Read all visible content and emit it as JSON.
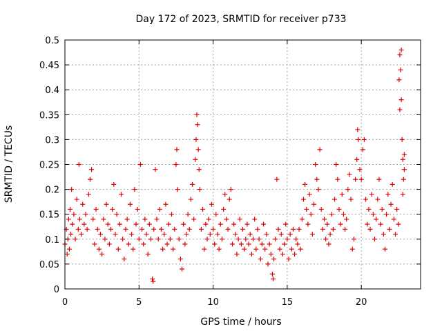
{
  "chart_data": {
    "type": "scatter",
    "title": "Day 172 of 2023, SRMTID for receiver p733",
    "xlabel": "GPS time / hours",
    "ylabel": "SRMTID / TECUs",
    "xlim": [
      0,
      24
    ],
    "ylim": [
      0,
      0.5
    ],
    "xticks": [
      0,
      5,
      10,
      15,
      20
    ],
    "xtick_labels": [
      "0",
      "5",
      "10",
      "15",
      "20"
    ],
    "yticks": [
      0,
      0.05,
      0.1,
      0.15,
      0.2,
      0.25,
      0.3,
      0.35,
      0.4,
      0.45,
      0.5
    ],
    "ytick_labels": [
      "0",
      "0.05",
      "0.1",
      "0.15",
      "0.2",
      "0.25",
      "0.3",
      "0.35",
      "0.4",
      "0.45",
      "0.5"
    ],
    "grid": true,
    "marker": "+",
    "color": "#e00000",
    "series": [
      {
        "name": "SRMTID",
        "points": [
          [
            0.0,
            0.09
          ],
          [
            0.1,
            0.12
          ],
          [
            0.15,
            0.07
          ],
          [
            0.2,
            0.1
          ],
          [
            0.25,
            0.14
          ],
          [
            0.3,
            0.08
          ],
          [
            0.35,
            0.16
          ],
          [
            0.4,
            0.11
          ],
          [
            0.45,
            0.2
          ],
          [
            0.5,
            0.13
          ],
          [
            0.6,
            0.15
          ],
          [
            0.7,
            0.1
          ],
          [
            0.8,
            0.18
          ],
          [
            0.9,
            0.12
          ],
          [
            0.95,
            0.25
          ],
          [
            1.0,
            0.14
          ],
          [
            1.1,
            0.11
          ],
          [
            1.2,
            0.17
          ],
          [
            1.3,
            0.13
          ],
          [
            1.4,
            0.15
          ],
          [
            1.5,
            0.12
          ],
          [
            1.6,
            0.19
          ],
          [
            1.7,
            0.22
          ],
          [
            1.8,
            0.24
          ],
          [
            1.9,
            0.14
          ],
          [
            2.0,
            0.09
          ],
          [
            2.1,
            0.16
          ],
          [
            2.2,
            0.12
          ],
          [
            2.3,
            0.08
          ],
          [
            2.4,
            0.11
          ],
          [
            2.5,
            0.07
          ],
          [
            2.6,
            0.14
          ],
          [
            2.7,
            0.1
          ],
          [
            2.8,
            0.17
          ],
          [
            2.9,
            0.13
          ],
          [
            3.0,
            0.09
          ],
          [
            3.1,
            0.12
          ],
          [
            3.2,
            0.16
          ],
          [
            3.3,
            0.21
          ],
          [
            3.4,
            0.11
          ],
          [
            3.5,
            0.15
          ],
          [
            3.6,
            0.08
          ],
          [
            3.7,
            0.13
          ],
          [
            3.8,
            0.19
          ],
          [
            3.9,
            0.1
          ],
          [
            4.0,
            0.06
          ],
          [
            4.1,
            0.12
          ],
          [
            4.2,
            0.14
          ],
          [
            4.3,
            0.09
          ],
          [
            4.4,
            0.17
          ],
          [
            4.5,
            0.11
          ],
          [
            4.6,
            0.08
          ],
          [
            4.7,
            0.2
          ],
          [
            4.8,
            0.13
          ],
          [
            4.9,
            0.16
          ],
          [
            5.0,
            0.1
          ],
          [
            5.1,
            0.25
          ],
          [
            5.2,
            0.12
          ],
          [
            5.3,
            0.09
          ],
          [
            5.4,
            0.14
          ],
          [
            5.5,
            0.11
          ],
          [
            5.6,
            0.07
          ],
          [
            5.7,
            0.13
          ],
          [
            5.8,
            0.1
          ],
          [
            5.9,
            0.02
          ],
          [
            5.95,
            0.015
          ],
          [
            6.0,
            0.12
          ],
          [
            6.1,
            0.24
          ],
          [
            6.2,
            0.14
          ],
          [
            6.3,
            0.1
          ],
          [
            6.4,
            0.16
          ],
          [
            6.5,
            0.12
          ],
          [
            6.6,
            0.08
          ],
          [
            6.7,
            0.11
          ],
          [
            6.8,
            0.17
          ],
          [
            6.9,
            0.09
          ],
          [
            7.0,
            0.13
          ],
          [
            7.1,
            0.1
          ],
          [
            7.2,
            0.15
          ],
          [
            7.3,
            0.08
          ],
          [
            7.4,
            0.12
          ],
          [
            7.5,
            0.25
          ],
          [
            7.55,
            0.28
          ],
          [
            7.6,
            0.2
          ],
          [
            7.7,
            0.1
          ],
          [
            7.8,
            0.06
          ],
          [
            7.9,
            0.04
          ],
          [
            8.0,
            0.13
          ],
          [
            8.1,
            0.09
          ],
          [
            8.2,
            0.11
          ],
          [
            8.3,
            0.15
          ],
          [
            8.4,
            0.12
          ],
          [
            8.5,
            0.18
          ],
          [
            8.6,
            0.21
          ],
          [
            8.7,
            0.14
          ],
          [
            8.8,
            0.26
          ],
          [
            8.85,
            0.3
          ],
          [
            8.9,
            0.35
          ],
          [
            8.95,
            0.33
          ],
          [
            9.0,
            0.28
          ],
          [
            9.05,
            0.24
          ],
          [
            9.1,
            0.2
          ],
          [
            9.2,
            0.12
          ],
          [
            9.3,
            0.16
          ],
          [
            9.4,
            0.08
          ],
          [
            9.5,
            0.13
          ],
          [
            9.6,
            0.1
          ],
          [
            9.7,
            0.14
          ],
          [
            9.8,
            0.11
          ],
          [
            9.9,
            0.17
          ],
          [
            10.0,
            0.12
          ],
          [
            10.1,
            0.09
          ],
          [
            10.2,
            0.15
          ],
          [
            10.3,
            0.11
          ],
          [
            10.4,
            0.08
          ],
          [
            10.5,
            0.13
          ],
          [
            10.6,
            0.1
          ],
          [
            10.7,
            0.16
          ],
          [
            10.8,
            0.19
          ],
          [
            10.9,
            0.14
          ],
          [
            11.0,
            0.12
          ],
          [
            11.1,
            0.18
          ],
          [
            11.2,
            0.2
          ],
          [
            11.3,
            0.09
          ],
          [
            11.4,
            0.13
          ],
          [
            11.5,
            0.11
          ],
          [
            11.6,
            0.07
          ],
          [
            11.7,
            0.1
          ],
          [
            11.8,
            0.14
          ],
          [
            11.9,
            0.09
          ],
          [
            12.0,
            0.12
          ],
          [
            12.1,
            0.08
          ],
          [
            12.2,
            0.1
          ],
          [
            12.3,
            0.13
          ],
          [
            12.4,
            0.09
          ],
          [
            12.5,
            0.11
          ],
          [
            12.6,
            0.07
          ],
          [
            12.7,
            0.1
          ],
          [
            12.8,
            0.14
          ],
          [
            12.9,
            0.08
          ],
          [
            13.0,
            0.12
          ],
          [
            13.1,
            0.1
          ],
          [
            13.2,
            0.06
          ],
          [
            13.3,
            0.09
          ],
          [
            13.4,
            0.13
          ],
          [
            13.5,
            0.08
          ],
          [
            13.6,
            0.11
          ],
          [
            13.7,
            0.05
          ],
          [
            13.8,
            0.09
          ],
          [
            13.9,
            0.07
          ],
          [
            14.0,
            0.03
          ],
          [
            14.05,
            0.02
          ],
          [
            14.1,
            0.06
          ],
          [
            14.2,
            0.1
          ],
          [
            14.3,
            0.22
          ],
          [
            14.4,
            0.12
          ],
          [
            14.5,
            0.08
          ],
          [
            14.6,
            0.11
          ],
          [
            14.7,
            0.07
          ],
          [
            14.8,
            0.09
          ],
          [
            14.9,
            0.13
          ],
          [
            15.0,
            0.1
          ],
          [
            15.1,
            0.06
          ],
          [
            15.2,
            0.11
          ],
          [
            15.3,
            0.08
          ],
          [
            15.4,
            0.12
          ],
          [
            15.5,
            0.07
          ],
          [
            15.6,
            0.1
          ],
          [
            15.7,
            0.09
          ],
          [
            15.8,
            0.12
          ],
          [
            15.9,
            0.08
          ],
          [
            16.0,
            0.14
          ],
          [
            16.1,
            0.18
          ],
          [
            16.2,
            0.21
          ],
          [
            16.3,
            0.16
          ],
          [
            16.4,
            0.13
          ],
          [
            16.5,
            0.19
          ],
          [
            16.6,
            0.15
          ],
          [
            16.7,
            0.11
          ],
          [
            16.8,
            0.17
          ],
          [
            16.9,
            0.25
          ],
          [
            17.0,
            0.22
          ],
          [
            17.1,
            0.2
          ],
          [
            17.2,
            0.28
          ],
          [
            17.3,
            0.16
          ],
          [
            17.4,
            0.12
          ],
          [
            17.5,
            0.14
          ],
          [
            17.6,
            0.1
          ],
          [
            17.7,
            0.13
          ],
          [
            17.8,
            0.09
          ],
          [
            17.9,
            0.11
          ],
          [
            18.0,
            0.15
          ],
          [
            18.1,
            0.12
          ],
          [
            18.2,
            0.18
          ],
          [
            18.3,
            0.25
          ],
          [
            18.4,
            0.22
          ],
          [
            18.5,
            0.16
          ],
          [
            18.6,
            0.13
          ],
          [
            18.7,
            0.19
          ],
          [
            18.8,
            0.15
          ],
          [
            18.9,
            0.12
          ],
          [
            19.0,
            0.14
          ],
          [
            19.1,
            0.2
          ],
          [
            19.2,
            0.23
          ],
          [
            19.3,
            0.18
          ],
          [
            19.4,
            0.08
          ],
          [
            19.5,
            0.1
          ],
          [
            19.6,
            0.22
          ],
          [
            19.7,
            0.26
          ],
          [
            19.75,
            0.32
          ],
          [
            19.8,
            0.3
          ],
          [
            19.9,
            0.24
          ],
          [
            20.0,
            0.22
          ],
          [
            20.1,
            0.28
          ],
          [
            20.2,
            0.3
          ],
          [
            20.3,
            0.18
          ],
          [
            20.4,
            0.13
          ],
          [
            20.5,
            0.16
          ],
          [
            20.6,
            0.12
          ],
          [
            20.7,
            0.19
          ],
          [
            20.8,
            0.15
          ],
          [
            20.9,
            0.1
          ],
          [
            21.0,
            0.14
          ],
          [
            21.1,
            0.18
          ],
          [
            21.2,
            0.22
          ],
          [
            21.3,
            0.13
          ],
          [
            21.4,
            0.16
          ],
          [
            21.5,
            0.11
          ],
          [
            21.6,
            0.08
          ],
          [
            21.7,
            0.15
          ],
          [
            21.8,
            0.19
          ],
          [
            21.9,
            0.12
          ],
          [
            22.0,
            0.17
          ],
          [
            22.1,
            0.21
          ],
          [
            22.2,
            0.14
          ],
          [
            22.3,
            0.11
          ],
          [
            22.4,
            0.16
          ],
          [
            22.5,
            0.13
          ],
          [
            22.55,
            0.42
          ],
          [
            22.6,
            0.47
          ],
          [
            22.65,
            0.44
          ],
          [
            22.7,
            0.38
          ],
          [
            22.75,
            0.3
          ],
          [
            22.8,
            0.26
          ],
          [
            22.85,
            0.22
          ],
          [
            22.9,
            0.27
          ],
          [
            22.6,
            0.36
          ],
          [
            22.7,
            0.48
          ],
          [
            22.8,
            0.19
          ],
          [
            22.9,
            0.24
          ]
        ]
      }
    ]
  }
}
